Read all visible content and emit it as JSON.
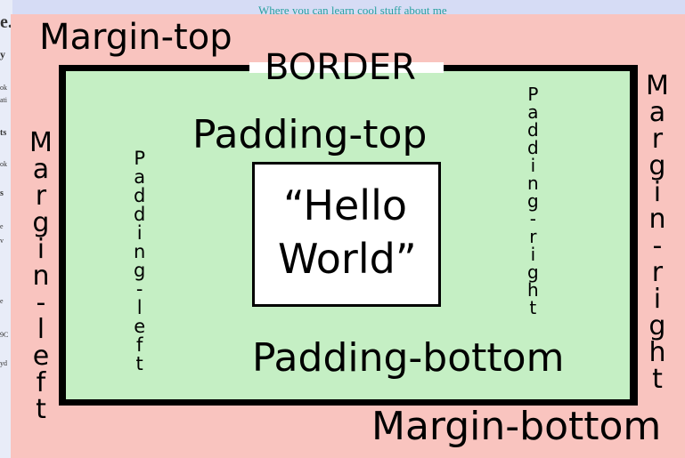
{
  "background_page": {
    "header_text": "Where you can learn cool stuff about me",
    "side_fragments": [
      "e.",
      "y",
      "ok",
      "ati",
      "ts",
      "ok",
      "s",
      "e",
      "v",
      "e",
      "9C",
      "yd"
    ]
  },
  "labels": {
    "margin_top": "Margin-top",
    "margin_bottom": "Margin-bottom",
    "margin_left": "Margin-left",
    "margin_right": "Margin-right",
    "border": "BORDER",
    "padding_top": "Padding-top",
    "padding_bottom": "Padding-bottom",
    "padding_left": "Padding-left",
    "padding_right": "Padding-right",
    "content_line1": "“Hello",
    "content_line2": "World”"
  },
  "colors": {
    "margin": "#f9c4bf",
    "border": "#000000",
    "padding": "#c5efc4",
    "content": "#ffffff",
    "backdrop": "#d6dcf5"
  }
}
